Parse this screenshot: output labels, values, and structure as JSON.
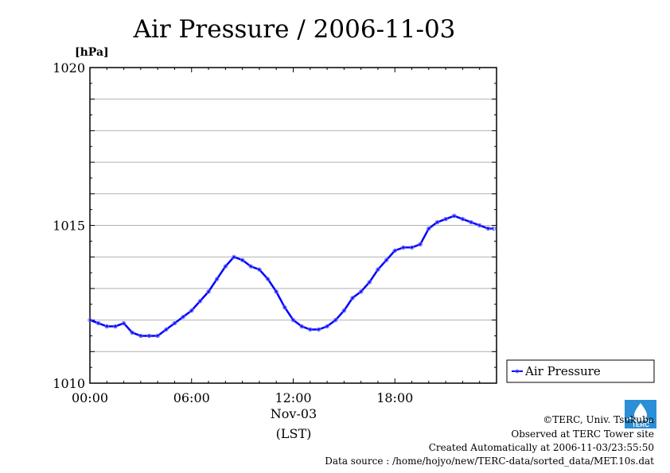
{
  "chart_data": {
    "type": "line",
    "title": "Air Pressure / 2006-11-03",
    "ylabel": "[hPa]",
    "xlabel": "(LST)",
    "x_date_label": "Nov-03",
    "x_range": [
      "00:00",
      "24:00"
    ],
    "ylim": [
      1010,
      1020
    ],
    "yticks": [
      "1010",
      "1015",
      "1020"
    ],
    "xticks": [
      "00:00",
      "06:00",
      "12:00",
      "18:00"
    ],
    "grid": "horizontal",
    "legend_position": "right",
    "series": [
      {
        "name": "Air Pressure",
        "color": "#0000ff",
        "x": [
          "00:00",
          "00:30",
          "01:00",
          "01:30",
          "02:00",
          "02:30",
          "03:00",
          "03:30",
          "04:00",
          "04:30",
          "05:00",
          "05:30",
          "06:00",
          "06:30",
          "07:00",
          "07:30",
          "08:00",
          "08:30",
          "09:00",
          "09:30",
          "10:00",
          "10:30",
          "11:00",
          "11:30",
          "12:00",
          "12:30",
          "13:00",
          "13:30",
          "14:00",
          "14:30",
          "15:00",
          "15:30",
          "16:00",
          "16:30",
          "17:00",
          "17:30",
          "18:00",
          "18:30",
          "19:00",
          "19:30",
          "20:00",
          "20:30",
          "21:00",
          "21:30",
          "22:00",
          "22:30",
          "23:00",
          "23:30",
          "23:50"
        ],
        "values": [
          1012.0,
          1011.9,
          1011.8,
          1011.8,
          1011.9,
          1011.6,
          1011.5,
          1011.5,
          1011.5,
          1011.7,
          1011.9,
          1012.1,
          1012.3,
          1012.6,
          1012.9,
          1013.3,
          1013.7,
          1014.0,
          1013.9,
          1013.7,
          1013.6,
          1013.3,
          1012.9,
          1012.4,
          1012.0,
          1011.8,
          1011.7,
          1011.7,
          1011.8,
          1012.0,
          1012.3,
          1012.7,
          1012.9,
          1013.2,
          1013.6,
          1013.9,
          1014.2,
          1014.3,
          1014.3,
          1014.4,
          1014.9,
          1015.1,
          1015.2,
          1015.3,
          1015.2,
          1015.1,
          1015.0,
          1014.9,
          1014.9
        ]
      }
    ]
  },
  "credits": {
    "copyright": "©TERC, Univ. Tsukuba",
    "observed": "Observed at TERC Tower site",
    "created": "Created Automatically at 2006-11-03/23:55:50",
    "source": "Data source : /home/hojyo/new/TERC-data/sorted_data/MET.10s.dat",
    "logo_text": "TERC"
  }
}
